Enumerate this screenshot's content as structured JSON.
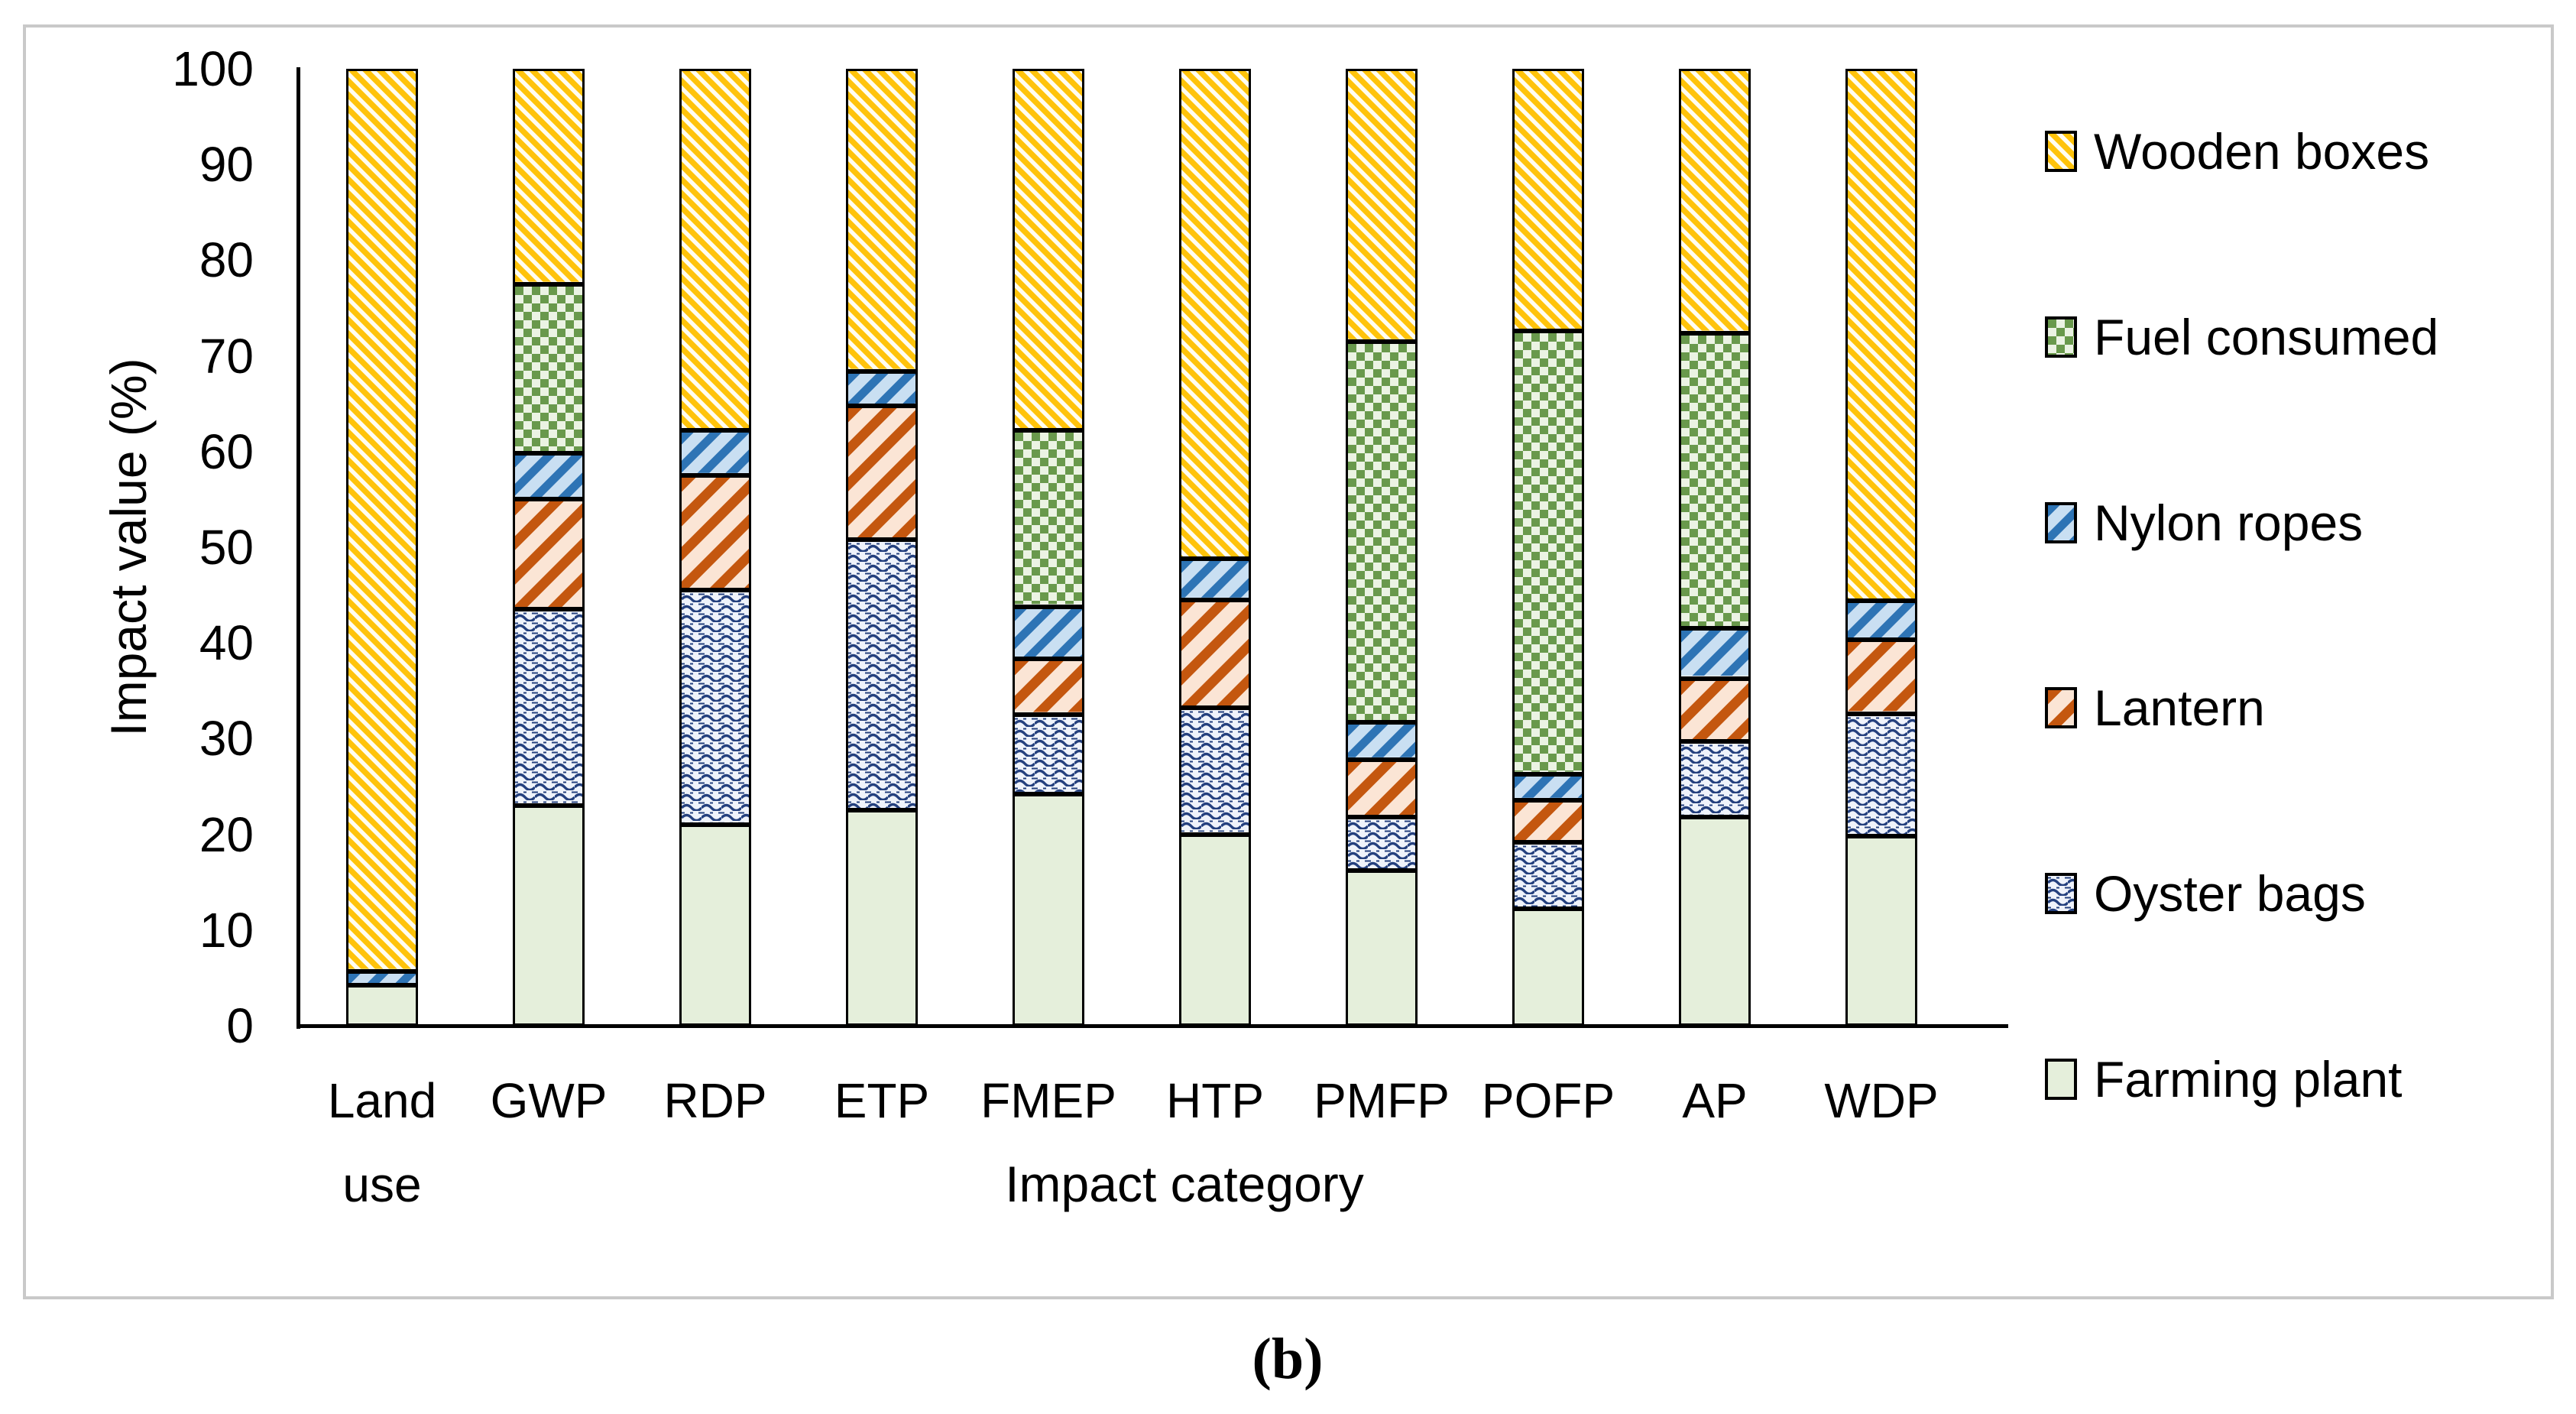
{
  "figure": {
    "caption": "(b)"
  },
  "chart_data": {
    "type": "bar",
    "stacked": true,
    "percent_stacked": true,
    "title": "",
    "xlabel": "Impact category",
    "ylabel": "Impact value (%)",
    "ylim": [
      0,
      100
    ],
    "y_ticks": [
      0,
      10,
      20,
      30,
      40,
      50,
      60,
      70,
      80,
      90,
      100
    ],
    "grid": false,
    "categories": [
      "Land use",
      "GWP",
      "RDP",
      "ETP",
      "FMEP",
      "HTP",
      "PMFP",
      "POFP",
      "AP",
      "WDP"
    ],
    "category_label_lines": [
      [
        "Land",
        "use"
      ],
      [
        "GWP"
      ],
      [
        "RDP"
      ],
      [
        "ETP"
      ],
      [
        "FMEP"
      ],
      [
        "HTP"
      ],
      [
        "PMFP"
      ],
      [
        "POFP"
      ],
      [
        "AP"
      ],
      [
        "WDP"
      ]
    ],
    "series_note": "listed bottom-to-top of each stacked bar; values are percent of 100",
    "series": [
      {
        "name": "Farming plant",
        "key": "farming",
        "pattern": "solid",
        "fg": "#E5EFDB",
        "bg": "#E5EFDB",
        "values": [
          4.2,
          23.0,
          21.0,
          22.5,
          24.2,
          20.0,
          16.2,
          12.2,
          21.8,
          19.8
        ]
      },
      {
        "name": "Oyster bags",
        "key": "oyster",
        "pattern": "horizontal-waves",
        "fg": "#24407E",
        "bg": "#EFF3FB",
        "values": [
          0,
          20.5,
          24.5,
          28.3,
          8.3,
          13.2,
          5.6,
          7.0,
          7.9,
          12.8
        ]
      },
      {
        "name": "Lantern",
        "key": "lantern",
        "pattern": "diagonal-down-stripes",
        "fg": "#C4570F",
        "bg": "#FBE5D5",
        "values": [
          0,
          11.5,
          12.0,
          14.0,
          5.8,
          11.3,
          6.0,
          4.4,
          6.6,
          7.7
        ]
      },
      {
        "name": "Nylon ropes",
        "key": "nylon",
        "pattern": "diagonal-down-stripes",
        "fg": "#2E74B5",
        "bg": "#C9DFF2",
        "values": [
          1.5,
          4.8,
          4.7,
          3.6,
          5.5,
          4.3,
          3.9,
          2.7,
          5.2,
          4.1
        ]
      },
      {
        "name": "Fuel consumed",
        "key": "fuel",
        "pattern": "checkerboard",
        "fg": "#69994C",
        "bg": "#EBF3E3",
        "values": [
          0,
          17.7,
          0,
          0,
          18.4,
          0,
          39.8,
          46.3,
          30.9,
          0
        ]
      },
      {
        "name": "Wooden boxes",
        "key": "wooden",
        "pattern": "diagonal-up-stripes",
        "fg": "#FFC30B",
        "bg": "#FFFDF2",
        "values": [
          94.3,
          22.5,
          37.8,
          31.6,
          37.8,
          51.2,
          28.5,
          27.4,
          27.6,
          55.6
        ]
      }
    ],
    "legend": {
      "position": "right",
      "items_top_to_bottom": [
        {
          "label": "Wooden boxes",
          "series_key": "wooden"
        },
        {
          "label": "Fuel consumed",
          "series_key": "fuel"
        },
        {
          "label": "Nylon ropes",
          "series_key": "nylon"
        },
        {
          "label": "Lantern",
          "series_key": "lantern"
        },
        {
          "label": "Oyster bags",
          "series_key": "oyster"
        },
        {
          "label": "Farming plant",
          "series_key": "farming"
        }
      ]
    }
  },
  "colors": {
    "axis": "#000000",
    "text": "#000000",
    "figure_border": "#C9C9C9",
    "background": "#FFFFFF"
  }
}
